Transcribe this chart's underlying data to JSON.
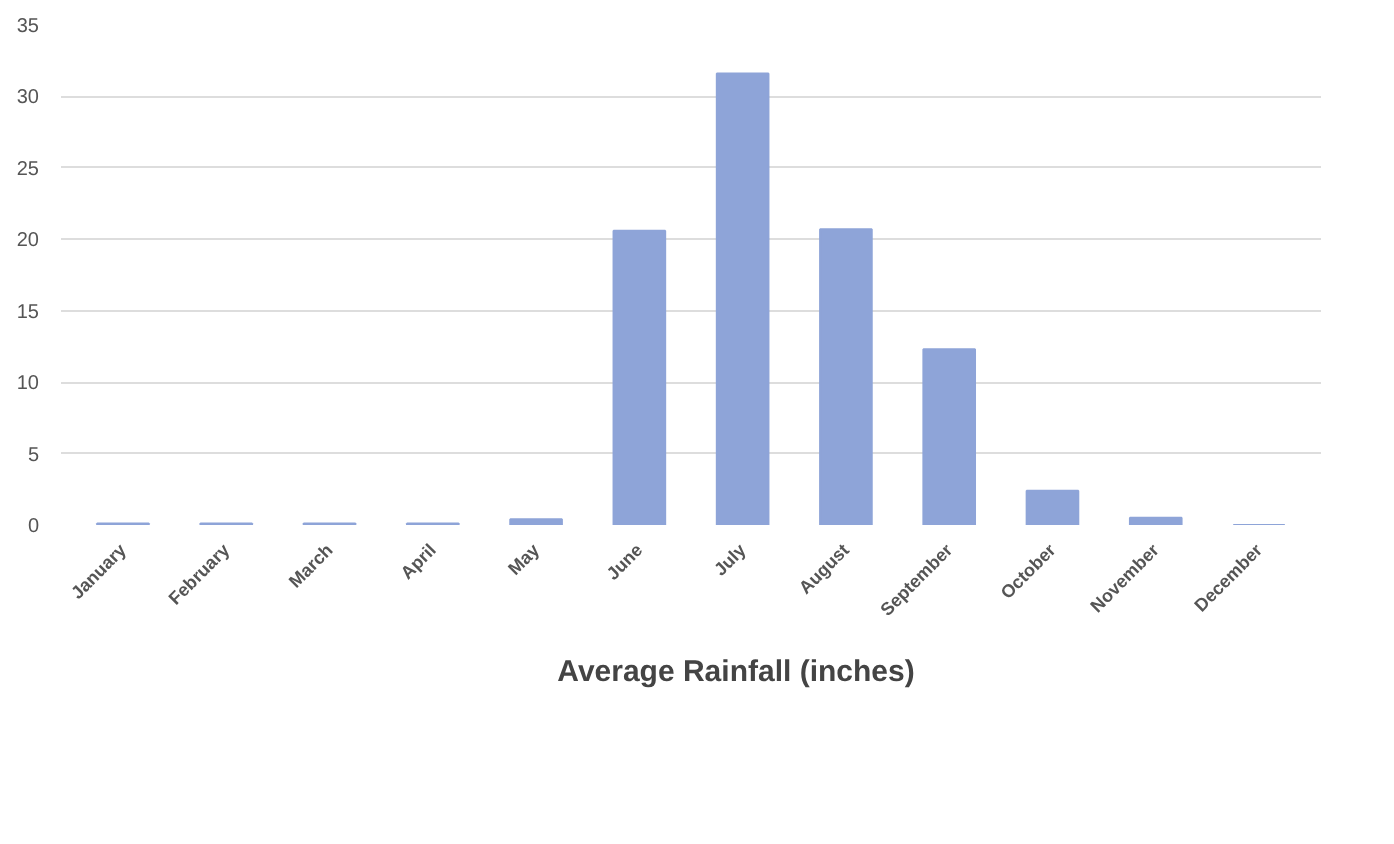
{
  "chart_data": {
    "type": "bar",
    "categories": [
      "January",
      "February",
      "March",
      "April",
      "May",
      "June",
      "July",
      "August",
      "September",
      "October",
      "November",
      "December"
    ],
    "series": [
      {
        "name": "Average Rainfall (inches)",
        "color": "#8ea4d8",
        "values": [
          0.1,
          0.1,
          0.1,
          0.1,
          0.4,
          20.6,
          31.6,
          20.7,
          12.3,
          2.4,
          0.5,
          0
        ]
      }
    ],
    "ylim": [
      0,
      35
    ],
    "yticks": [
      0,
      5,
      10,
      15,
      20,
      25,
      30,
      35
    ],
    "grid": "y",
    "legend": "bottom"
  }
}
